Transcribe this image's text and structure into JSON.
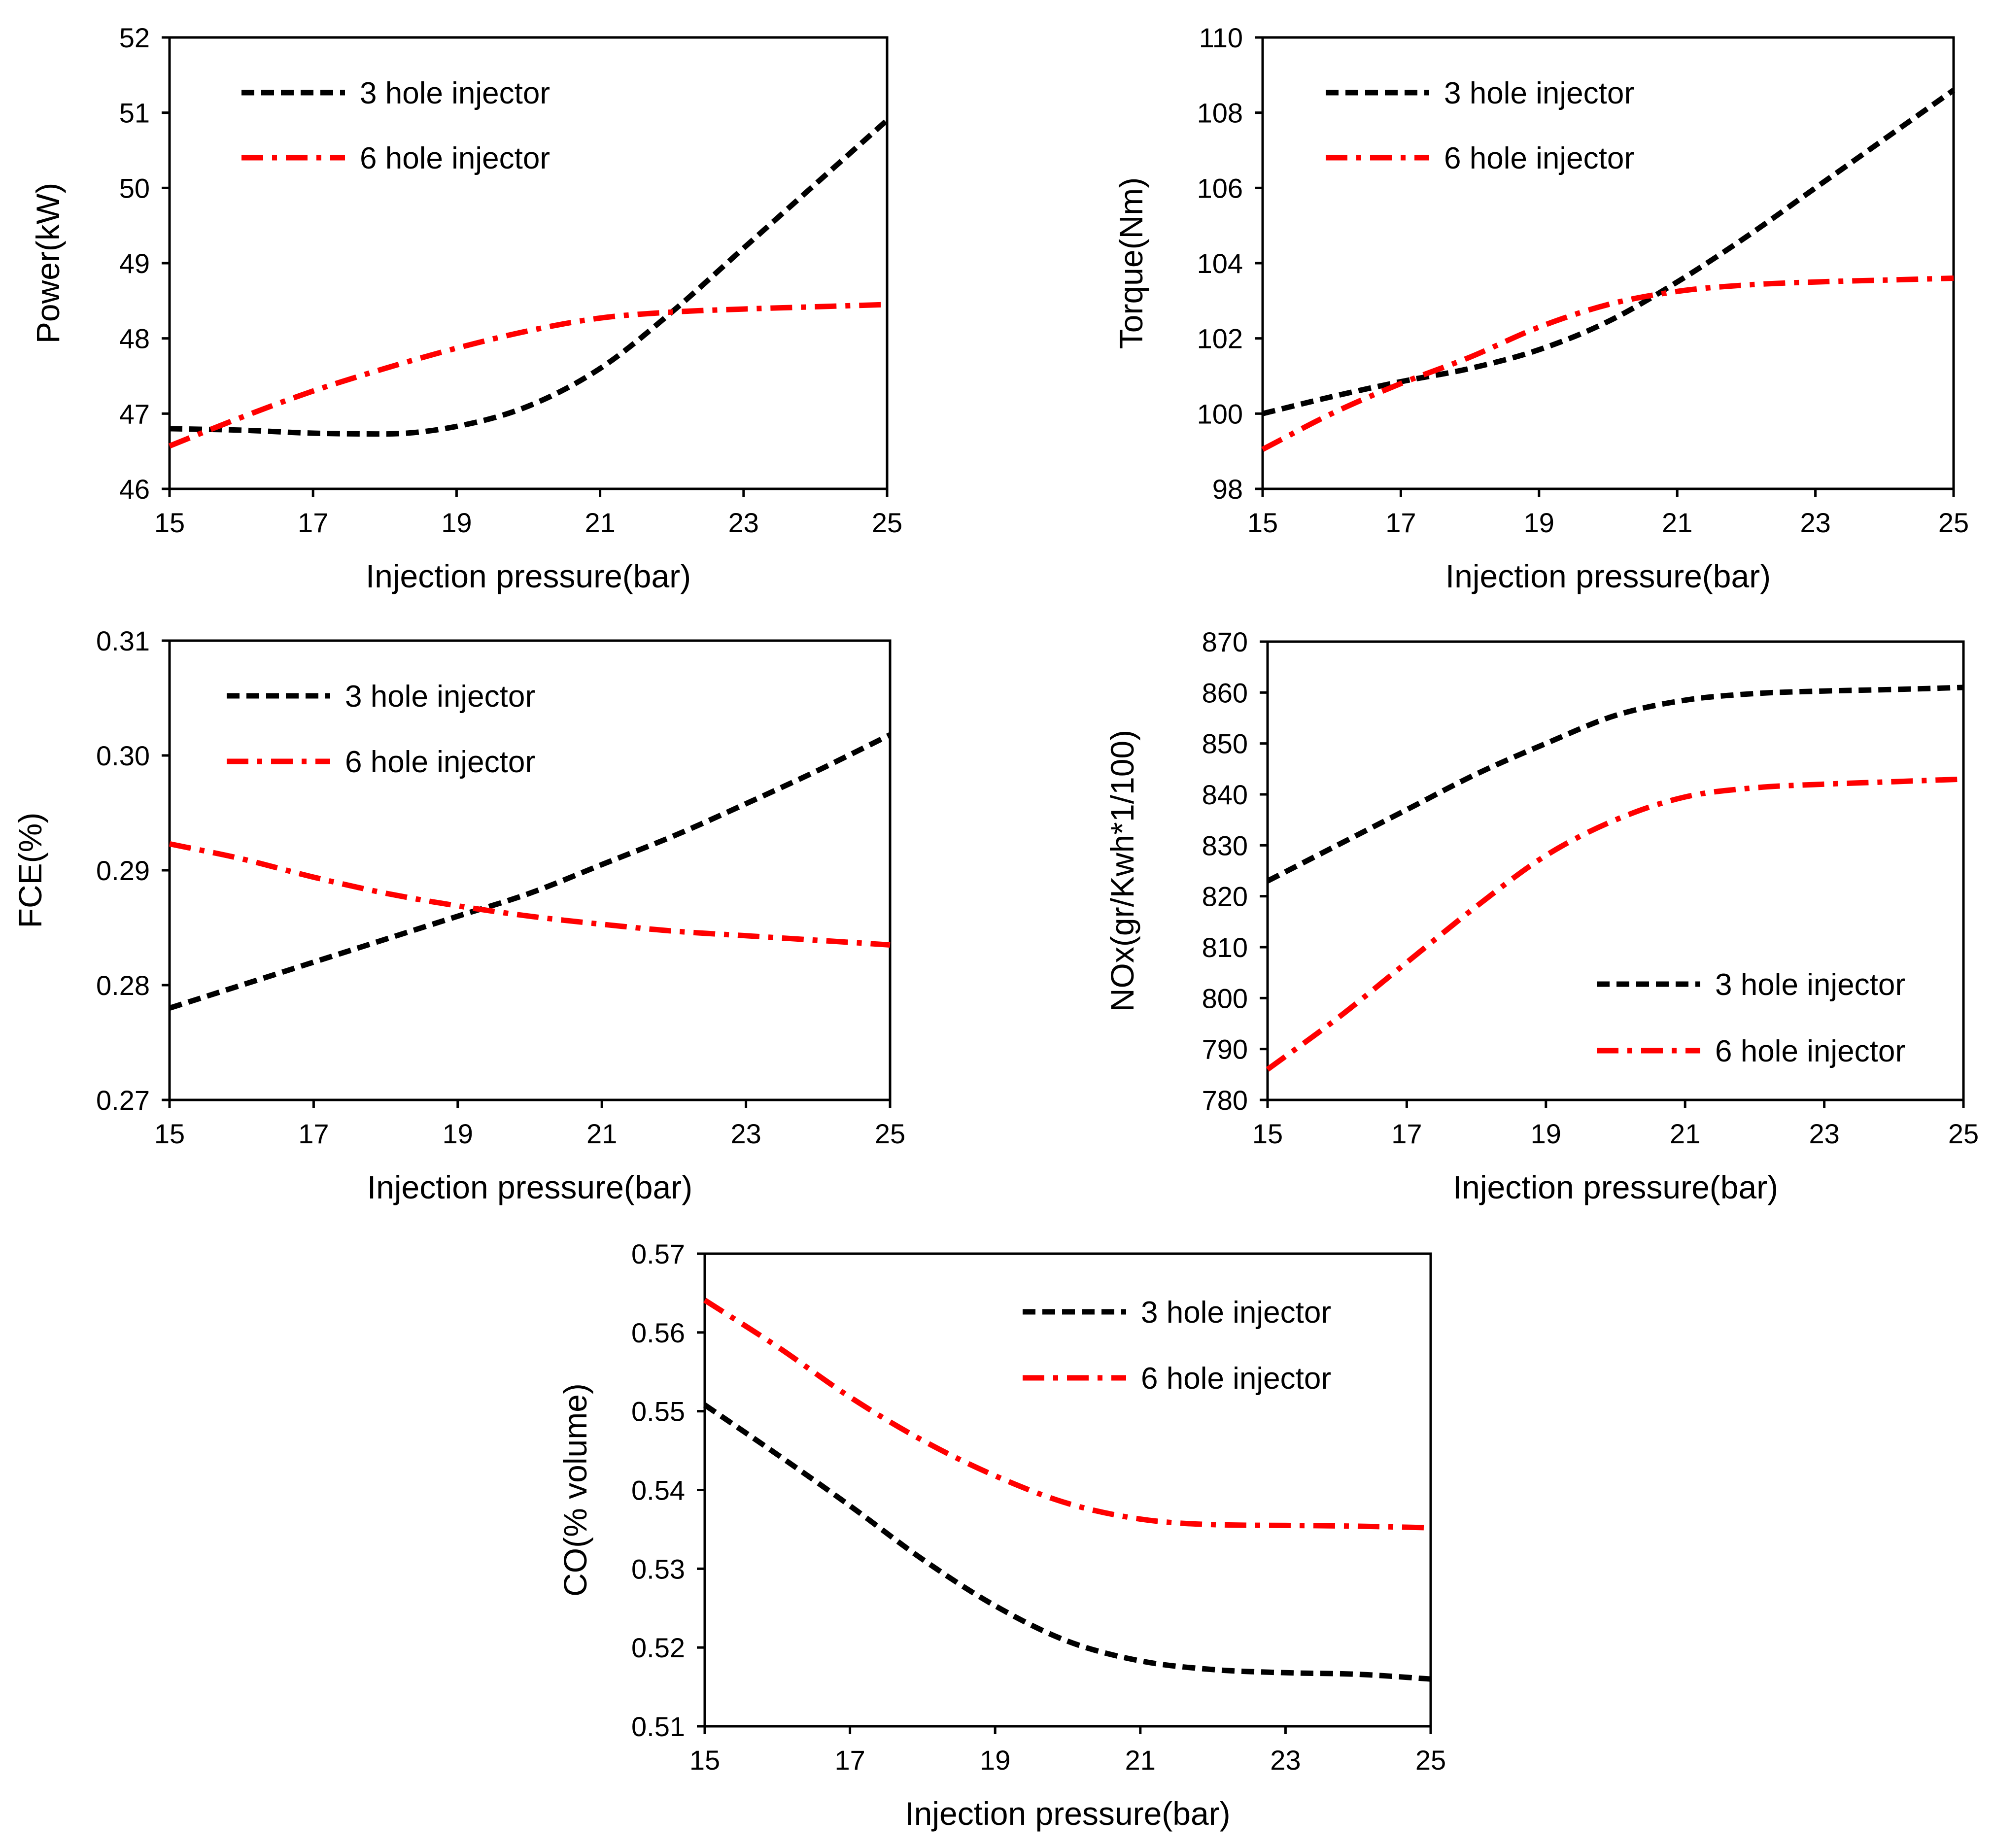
{
  "figure": {
    "description_free": true,
    "colors": {
      "series_3_hole": "#000000",
      "series_6_hole": "#ff0000",
      "axis": "#000000",
      "background": "#ffffff"
    }
  },
  "chart_data": [
    {
      "id": "power",
      "type": "line",
      "xlabel": "Injection pressure(bar)",
      "ylabel": "Power(kW)",
      "xlim": [
        15,
        25
      ],
      "ylim": [
        46,
        52
      ],
      "xticks": [
        15,
        17,
        19,
        21,
        23,
        25
      ],
      "yticks": [
        46,
        47,
        48,
        49,
        50,
        51,
        52
      ],
      "legend_position": "top-left",
      "series": [
        {
          "name": "3 hole injector",
          "color": "#000000",
          "dash": "dashed",
          "x": [
            15,
            16,
            17,
            18,
            19,
            20,
            21,
            22,
            23,
            24,
            25
          ],
          "y": [
            46.8,
            46.78,
            46.74,
            46.73,
            46.83,
            47.1,
            47.6,
            48.35,
            49.2,
            50.05,
            50.9
          ]
        },
        {
          "name": "6 hole injector",
          "color": "#ff0000",
          "dash": "dash-dot",
          "x": [
            15,
            16,
            17,
            18,
            19,
            20,
            21,
            22,
            23,
            24,
            25
          ],
          "y": [
            46.57,
            46.95,
            47.3,
            47.6,
            47.87,
            48.1,
            48.27,
            48.35,
            48.39,
            48.42,
            48.45
          ]
        }
      ]
    },
    {
      "id": "torque",
      "type": "line",
      "xlabel": "Injection pressure(bar)",
      "ylabel": "Torque(Nm)",
      "xlim": [
        15,
        25
      ],
      "ylim": [
        98,
        110
      ],
      "xticks": [
        15,
        17,
        19,
        21,
        23,
        25
      ],
      "yticks": [
        98,
        100,
        102,
        104,
        106,
        108,
        110
      ],
      "legend_position": "top-left",
      "series": [
        {
          "name": "3 hole injector",
          "color": "#000000",
          "dash": "dashed",
          "x": [
            15,
            16,
            17,
            18,
            19,
            20,
            21,
            22,
            23,
            24,
            25
          ],
          "y": [
            100.0,
            100.45,
            100.85,
            101.2,
            101.7,
            102.45,
            103.5,
            104.7,
            106.0,
            107.3,
            108.6
          ]
        },
        {
          "name": "6 hole injector",
          "color": "#ff0000",
          "dash": "dash-dot",
          "x": [
            15,
            16,
            17,
            18,
            19,
            20,
            21,
            22,
            23,
            24,
            25
          ],
          "y": [
            99.05,
            100.0,
            100.8,
            101.5,
            102.3,
            102.9,
            103.25,
            103.42,
            103.5,
            103.55,
            103.6
          ]
        }
      ]
    },
    {
      "id": "fce",
      "type": "line",
      "xlabel": "Injection pressure(bar)",
      "ylabel": "FCE(%)",
      "xlim": [
        15,
        25
      ],
      "ylim": [
        0.27,
        0.31
      ],
      "xticks": [
        15,
        17,
        19,
        21,
        23,
        25
      ],
      "yticks": [
        "0.27",
        "0.28",
        "0.29",
        "0.30",
        "0.31"
      ],
      "legend_position": "top-left",
      "series": [
        {
          "name": "3 hole injector",
          "color": "#000000",
          "dash": "dashed",
          "x": [
            15,
            16,
            17,
            18,
            19,
            20,
            21,
            22,
            23,
            24,
            25
          ],
          "y": [
            0.278,
            0.28,
            0.282,
            0.284,
            0.286,
            0.288,
            0.2905,
            0.293,
            0.2958,
            0.2987,
            0.3018
          ]
        },
        {
          "name": "6 hole injector",
          "color": "#ff0000",
          "dash": "dash-dot",
          "x": [
            15,
            16,
            17,
            18,
            19,
            20,
            21,
            22,
            23,
            24,
            25
          ],
          "y": [
            0.2923,
            0.291,
            0.2894,
            0.288,
            0.2869,
            0.286,
            0.2853,
            0.2847,
            0.2843,
            0.2839,
            0.2835
          ]
        }
      ]
    },
    {
      "id": "nox",
      "type": "line",
      "xlabel": "Injection pressure(bar)",
      "ylabel": "NOx(gr/Kwh*1/100)",
      "xlim": [
        15,
        25
      ],
      "ylim": [
        780,
        870
      ],
      "xticks": [
        15,
        17,
        19,
        21,
        23,
        25
      ],
      "yticks": [
        780,
        790,
        800,
        810,
        820,
        830,
        840,
        850,
        860,
        870
      ],
      "legend_position": "bottom-right",
      "series": [
        {
          "name": "3 hole injector",
          "color": "#000000",
          "dash": "dashed",
          "x": [
            15,
            16,
            17,
            18,
            19,
            20,
            21,
            22,
            23,
            24,
            25
          ],
          "y": [
            823,
            830,
            837,
            844,
            850,
            855.5,
            858.5,
            859.8,
            860.3,
            860.6,
            861
          ]
        },
        {
          "name": "6 hole injector",
          "color": "#ff0000",
          "dash": "dash-dot",
          "x": [
            15,
            16,
            17,
            18,
            19,
            20,
            21,
            22,
            23,
            24,
            25
          ],
          "y": [
            786,
            796,
            807,
            818,
            828,
            835,
            839.5,
            841.3,
            842,
            842.5,
            843
          ]
        }
      ]
    },
    {
      "id": "co",
      "type": "line",
      "xlabel": "Injection pressure(bar)",
      "ylabel": "CO(% volume)",
      "xlim": [
        15,
        25
      ],
      "ylim": [
        0.51,
        0.57
      ],
      "xticks": [
        15,
        17,
        19,
        21,
        23,
        25
      ],
      "yticks": [
        "0.51",
        "0.52",
        "0.53",
        "0.54",
        "0.55",
        "0.56",
        "0.57"
      ],
      "legend_position": "top-right",
      "series": [
        {
          "name": "3 hole injector",
          "color": "#000000",
          "dash": "dashed",
          "x": [
            15,
            16,
            17,
            18,
            19,
            20,
            21,
            22,
            23,
            24,
            25
          ],
          "y": [
            0.5508,
            0.5445,
            0.538,
            0.5312,
            0.5253,
            0.5208,
            0.5183,
            0.5172,
            0.5168,
            0.5166,
            0.516
          ]
        },
        {
          "name": "6 hole injector",
          "color": "#ff0000",
          "dash": "dash-dot",
          "x": [
            15,
            16,
            17,
            18,
            19,
            20,
            21,
            22,
            23,
            24,
            25
          ],
          "y": [
            0.5641,
            0.5582,
            0.5518,
            0.5463,
            0.5418,
            0.5383,
            0.5363,
            0.5356,
            0.5355,
            0.5354,
            0.5352
          ]
        }
      ]
    }
  ]
}
